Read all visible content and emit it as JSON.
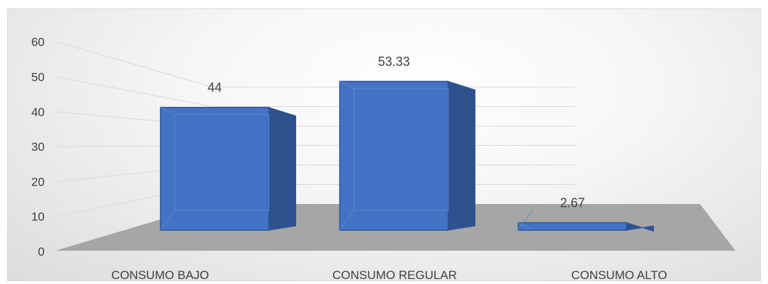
{
  "chart_data": {
    "type": "bar",
    "title": "",
    "xlabel": "",
    "ylabel": "",
    "categories": [
      "CONSUMO BAJO",
      "CONSUMO REGULAR",
      "CONSUMO ALTO"
    ],
    "values": [
      44,
      53.33,
      2.67
    ],
    "value_labels": [
      "44",
      "53.33",
      "2.67"
    ],
    "ylim": [
      0,
      60
    ],
    "yticks": [
      "0",
      "10",
      "20",
      "30",
      "40",
      "50",
      "60"
    ],
    "grid": true,
    "legend": "none",
    "style": "3d-column",
    "colors": {
      "bar_front": "#4472c4",
      "bar_side": "#2f528f",
      "bar_edge": "#2f5597",
      "floor": "#a6a6a6",
      "gridline": "#d9d9d9",
      "axis_text": "#404040"
    }
  }
}
